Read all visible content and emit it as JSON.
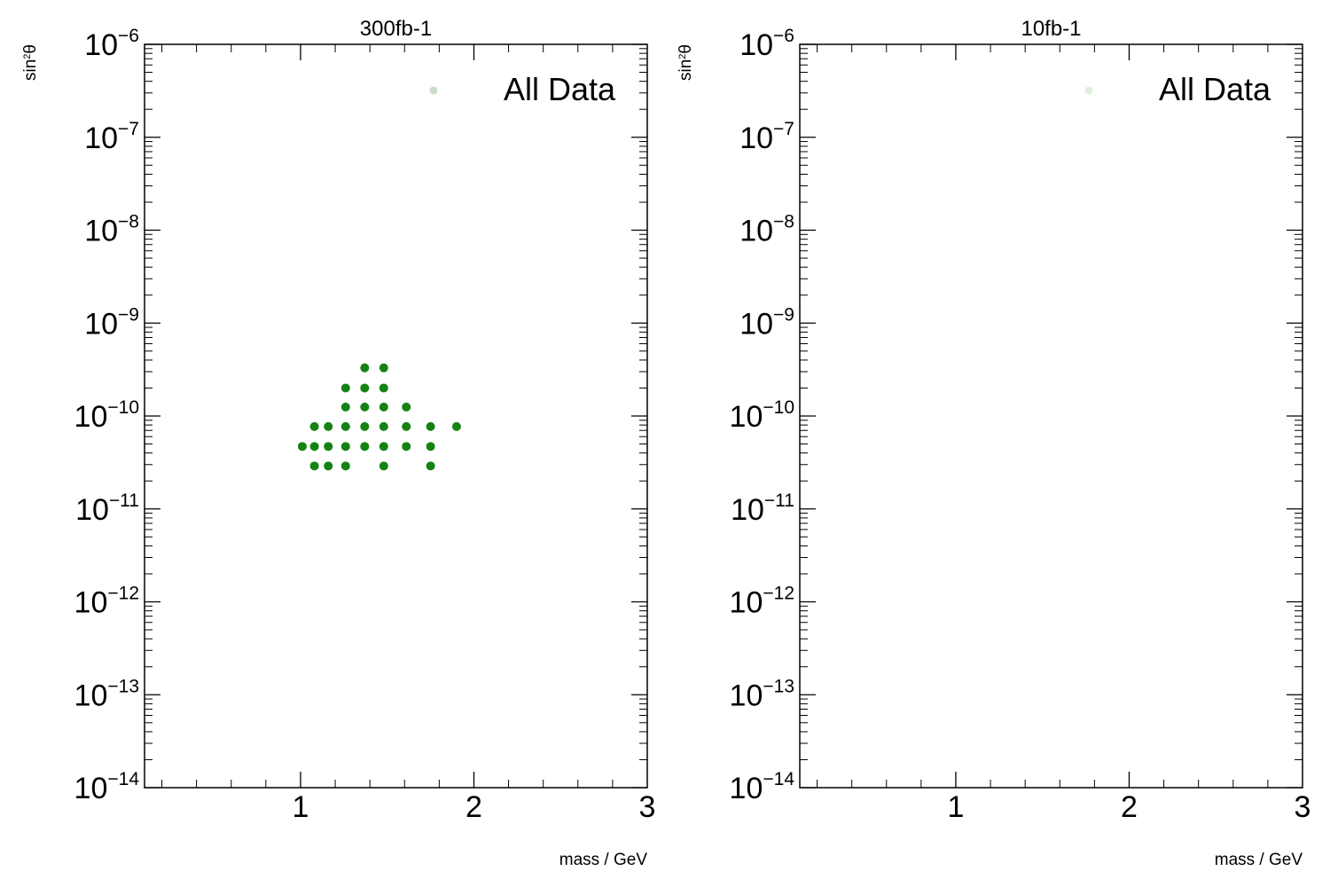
{
  "colors": {
    "marker": "#007800",
    "frame": "#000000"
  },
  "chart_data": [
    {
      "type": "scatter",
      "title": "300fb-1",
      "xlabel": "mass / GeV",
      "ylabel": "sin²θ",
      "ylabel_base": "sin",
      "ylabel_exp": "2",
      "ylabel_sym": "θ",
      "xlim": [
        0.1,
        3
      ],
      "ylim": [
        1e-14,
        1e-06
      ],
      "yscale": "log",
      "grid": false,
      "legend": {
        "label": "All Data",
        "position": "top-right"
      },
      "x_ticks": [
        "1",
        "2",
        "3"
      ],
      "y_ticks": [
        {
          "base": "10",
          "exp": "−6"
        },
        {
          "base": "10",
          "exp": "−7"
        },
        {
          "base": "10",
          "exp": "−8"
        },
        {
          "base": "10",
          "exp": "−9"
        },
        {
          "base": "10",
          "exp": "−10"
        },
        {
          "base": "10",
          "exp": "−11"
        },
        {
          "base": "10",
          "exp": "−12"
        },
        {
          "base": "10",
          "exp": "−13"
        },
        {
          "base": "10",
          "exp": "−14"
        }
      ],
      "series": [
        {
          "name": "All Data",
          "points": [
            [
              1.37,
              3.3e-10
            ],
            [
              1.48,
              3.3e-10
            ],
            [
              1.26,
              2e-10
            ],
            [
              1.37,
              2e-10
            ],
            [
              1.48,
              2e-10
            ],
            [
              1.26,
              1.25e-10
            ],
            [
              1.37,
              1.25e-10
            ],
            [
              1.48,
              1.25e-10
            ],
            [
              1.61,
              1.25e-10
            ],
            [
              1.08,
              7.7e-11
            ],
            [
              1.16,
              7.7e-11
            ],
            [
              1.26,
              7.7e-11
            ],
            [
              1.37,
              7.7e-11
            ],
            [
              1.48,
              7.7e-11
            ],
            [
              1.61,
              7.7e-11
            ],
            [
              1.75,
              7.7e-11
            ],
            [
              1.9,
              7.7e-11
            ],
            [
              1.01,
              4.7e-11
            ],
            [
              1.08,
              4.7e-11
            ],
            [
              1.16,
              4.7e-11
            ],
            [
              1.26,
              4.7e-11
            ],
            [
              1.37,
              4.7e-11
            ],
            [
              1.48,
              4.7e-11
            ],
            [
              1.61,
              4.7e-11
            ],
            [
              1.75,
              4.7e-11
            ],
            [
              1.08,
              2.9e-11
            ],
            [
              1.16,
              2.9e-11
            ],
            [
              1.26,
              2.9e-11
            ],
            [
              1.48,
              2.9e-11
            ],
            [
              1.75,
              2.9e-11
            ]
          ]
        }
      ]
    },
    {
      "type": "scatter",
      "title": "10fb-1",
      "xlabel": "mass / GeV",
      "ylabel": "sin²θ",
      "ylabel_base": "sin",
      "ylabel_exp": "2",
      "ylabel_sym": "θ",
      "xlim": [
        0.1,
        3
      ],
      "ylim": [
        1e-14,
        1e-06
      ],
      "yscale": "log",
      "grid": false,
      "legend": {
        "label": "All Data",
        "position": "top-right"
      },
      "x_ticks": [
        "1",
        "2",
        "3"
      ],
      "y_ticks": [
        {
          "base": "10",
          "exp": "−6"
        },
        {
          "base": "10",
          "exp": "−7"
        },
        {
          "base": "10",
          "exp": "−8"
        },
        {
          "base": "10",
          "exp": "−9"
        },
        {
          "base": "10",
          "exp": "−10"
        },
        {
          "base": "10",
          "exp": "−11"
        },
        {
          "base": "10",
          "exp": "−12"
        },
        {
          "base": "10",
          "exp": "−13"
        },
        {
          "base": "10",
          "exp": "−14"
        }
      ],
      "series": [
        {
          "name": "All Data",
          "points": []
        }
      ]
    }
  ]
}
